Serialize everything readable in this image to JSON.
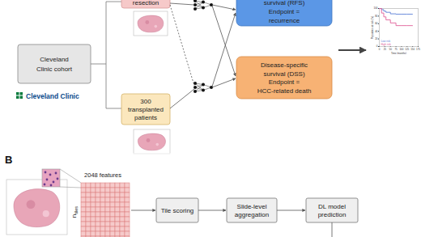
{
  "panel_a": {
    "resection_box": [
      "resection"
    ],
    "cohort_box": [
      "Cleveland",
      "Clinic cohort"
    ],
    "logo": "Cleveland Clinic",
    "transplanted_box": [
      "300",
      "transplanted",
      "patients"
    ],
    "rfs_box": [
      "survival (RFS)",
      "Endpoint =",
      "recurrence"
    ],
    "dss_box": [
      "Disease-specific",
      "survival (DSS)",
      "Endpoint =",
      "HCC-related death"
    ]
  },
  "panel_b": {
    "label": "B",
    "features": "2048 features",
    "n_tiles": {
      "main": "n",
      "sub": "tiles"
    },
    "steps": [
      [
        "Tile scoring"
      ],
      [
        "Slide-level",
        "aggregation"
      ],
      [
        "DL model",
        "prediction"
      ]
    ]
  },
  "chart_data": {
    "type": "line",
    "x_label": "Time (months)",
    "y_label": "Population at risk (%)",
    "x": [
      0,
      10,
      20,
      30,
      50,
      75,
      100,
      125,
      150
    ],
    "series": [
      {
        "name": "Low risk",
        "color": "#5a7fd6",
        "values": [
          100,
          97,
          93,
          90,
          86,
          85,
          85,
          85,
          85
        ]
      },
      {
        "name": "High risk",
        "color": "#e0609a",
        "values": [
          100,
          88,
          78,
          70,
          62,
          55,
          55,
          55,
          55
        ]
      }
    ],
    "xlim": [
      0,
      175
    ],
    "xticks": [
      0,
      25,
      50,
      75,
      100,
      125,
      150,
      175
    ],
    "ylim": [
      0,
      100
    ],
    "yticks": [
      0,
      20,
      40,
      60,
      80,
      100
    ],
    "legend": "bottom-left"
  }
}
